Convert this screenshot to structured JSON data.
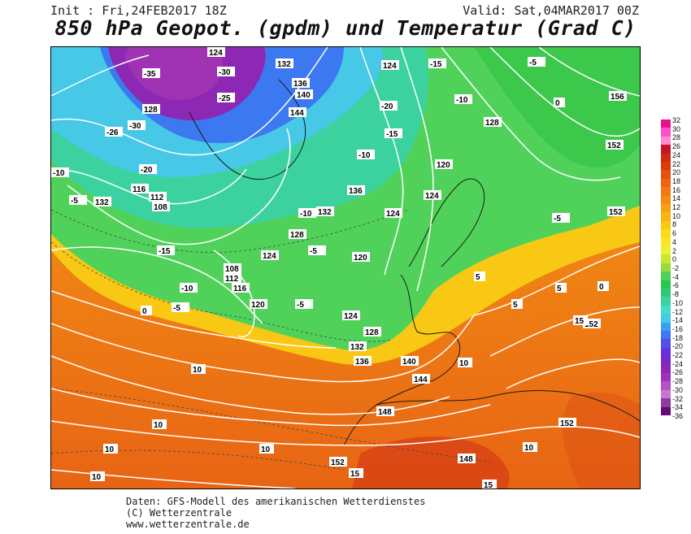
{
  "header": {
    "init": "Init : Fri,24FEB2017 18Z",
    "valid": "Valid: Sat,04MAR2017 00Z",
    "title": "850 hPa Geopot. (gpdm) und Temperatur (Grad C)"
  },
  "legend": {
    "ticks": [
      "32",
      "30",
      "28",
      "26",
      "24",
      "22",
      "20",
      "18",
      "16",
      "14",
      "12",
      "10",
      "8",
      "6",
      "4",
      "2",
      "0",
      "-2",
      "-4",
      "-6",
      "-8",
      "-10",
      "-12",
      "-14",
      "-16",
      "-18",
      "-20",
      "-22",
      "-24",
      "-26",
      "-28",
      "-30",
      "-32",
      "-34",
      "-36"
    ],
    "colors": [
      "#e8108c",
      "#ff50c8",
      "#ff8cd2",
      "#c81428",
      "#d22814",
      "#dc3c0a",
      "#e65014",
      "#ee6414",
      "#f27814",
      "#f48c14",
      "#f6a014",
      "#f8b414",
      "#fac814",
      "#fadc14",
      "#fae628",
      "#f0f032",
      "#c8e632",
      "#96dc3c",
      "#50d25a",
      "#28c850",
      "#32c878",
      "#3cd2a0",
      "#46dcc8",
      "#46c8e6",
      "#3ca0f0",
      "#3c78f0",
      "#5050e6",
      "#6432dc",
      "#7828c8",
      "#8c28b4",
      "#a032b4",
      "#b450c8",
      "#c878d2",
      "#8c3ca0",
      "#640a78"
    ]
  },
  "geopotential_labels": [
    "124",
    "132",
    "136",
    "140",
    "144",
    "128",
    "156",
    "120",
    "116",
    "112",
    "108",
    "152",
    "148"
  ],
  "temperature_labels": [
    "-35",
    "-30",
    "-25",
    "-20",
    "-15",
    "-10",
    "-5",
    "0",
    "5",
    "10",
    "15",
    "-26"
  ],
  "footer": {
    "line1": "Daten: GFS-Modell des amerikanischen Wetterdienstes",
    "line2": "(C) Wetterzentrale",
    "line3": "www.wetterzentrale.de"
  }
}
